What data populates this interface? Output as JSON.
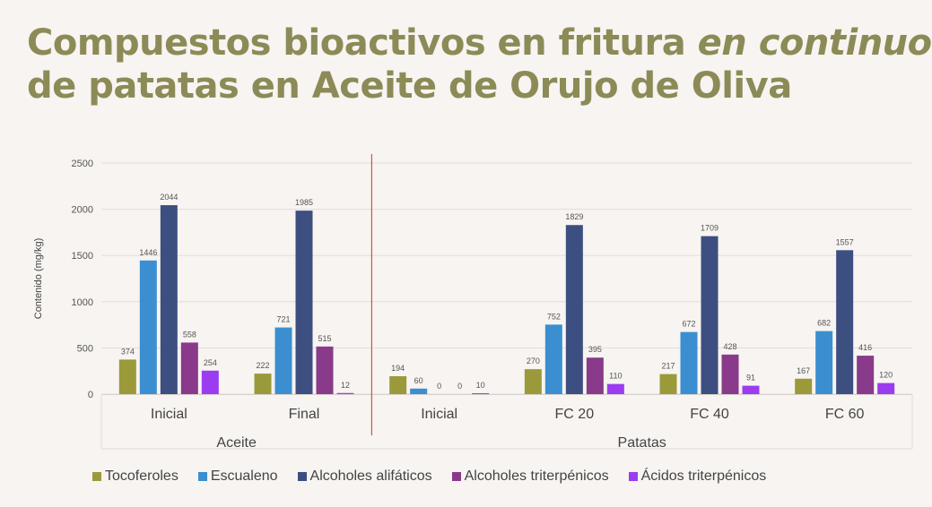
{
  "title": {
    "line1_plain": "Compuestos bioactivos en fritura ",
    "line1_italic": "en continuo",
    "line2": "de patatas en Aceite de Orujo de Oliva"
  },
  "chart_data": {
    "type": "bar",
    "ylabel": "Contenido (mg/kg)",
    "ylim": [
      0,
      2500
    ],
    "yticks": [
      0,
      500,
      1000,
      1500,
      2000,
      2500
    ],
    "grid": true,
    "legend_position": "bottom",
    "groups": [
      {
        "name": "Aceite",
        "categories": [
          "Inicial",
          "Final"
        ]
      },
      {
        "name": "Patatas",
        "categories": [
          "Inicial",
          "FC 20",
          "FC 40",
          "FC 60"
        ]
      }
    ],
    "categories": [
      "Inicial",
      "Final",
      "Inicial",
      "FC 20",
      "FC 40",
      "FC 60"
    ],
    "series": [
      {
        "name": "Tocoferoles",
        "color": "#9b9a3a",
        "values": [
          374,
          222,
          194,
          270,
          217,
          167
        ]
      },
      {
        "name": "Escualeno",
        "color": "#3b8fd0",
        "values": [
          1446,
          721,
          60,
          752,
          672,
          682
        ]
      },
      {
        "name": "Alcoholes alifáticos",
        "color": "#3d4f80",
        "values": [
          2044,
          1985,
          0,
          1829,
          1709,
          1557
        ]
      },
      {
        "name": "Alcoholes triterpénicos",
        "color": "#8a3a8a",
        "values": [
          558,
          515,
          0,
          395,
          428,
          416
        ]
      },
      {
        "name": "Ácidos triterpénicos",
        "color": "#9b3cf0",
        "values": [
          254,
          12,
          10,
          110,
          91,
          120
        ]
      }
    ]
  }
}
